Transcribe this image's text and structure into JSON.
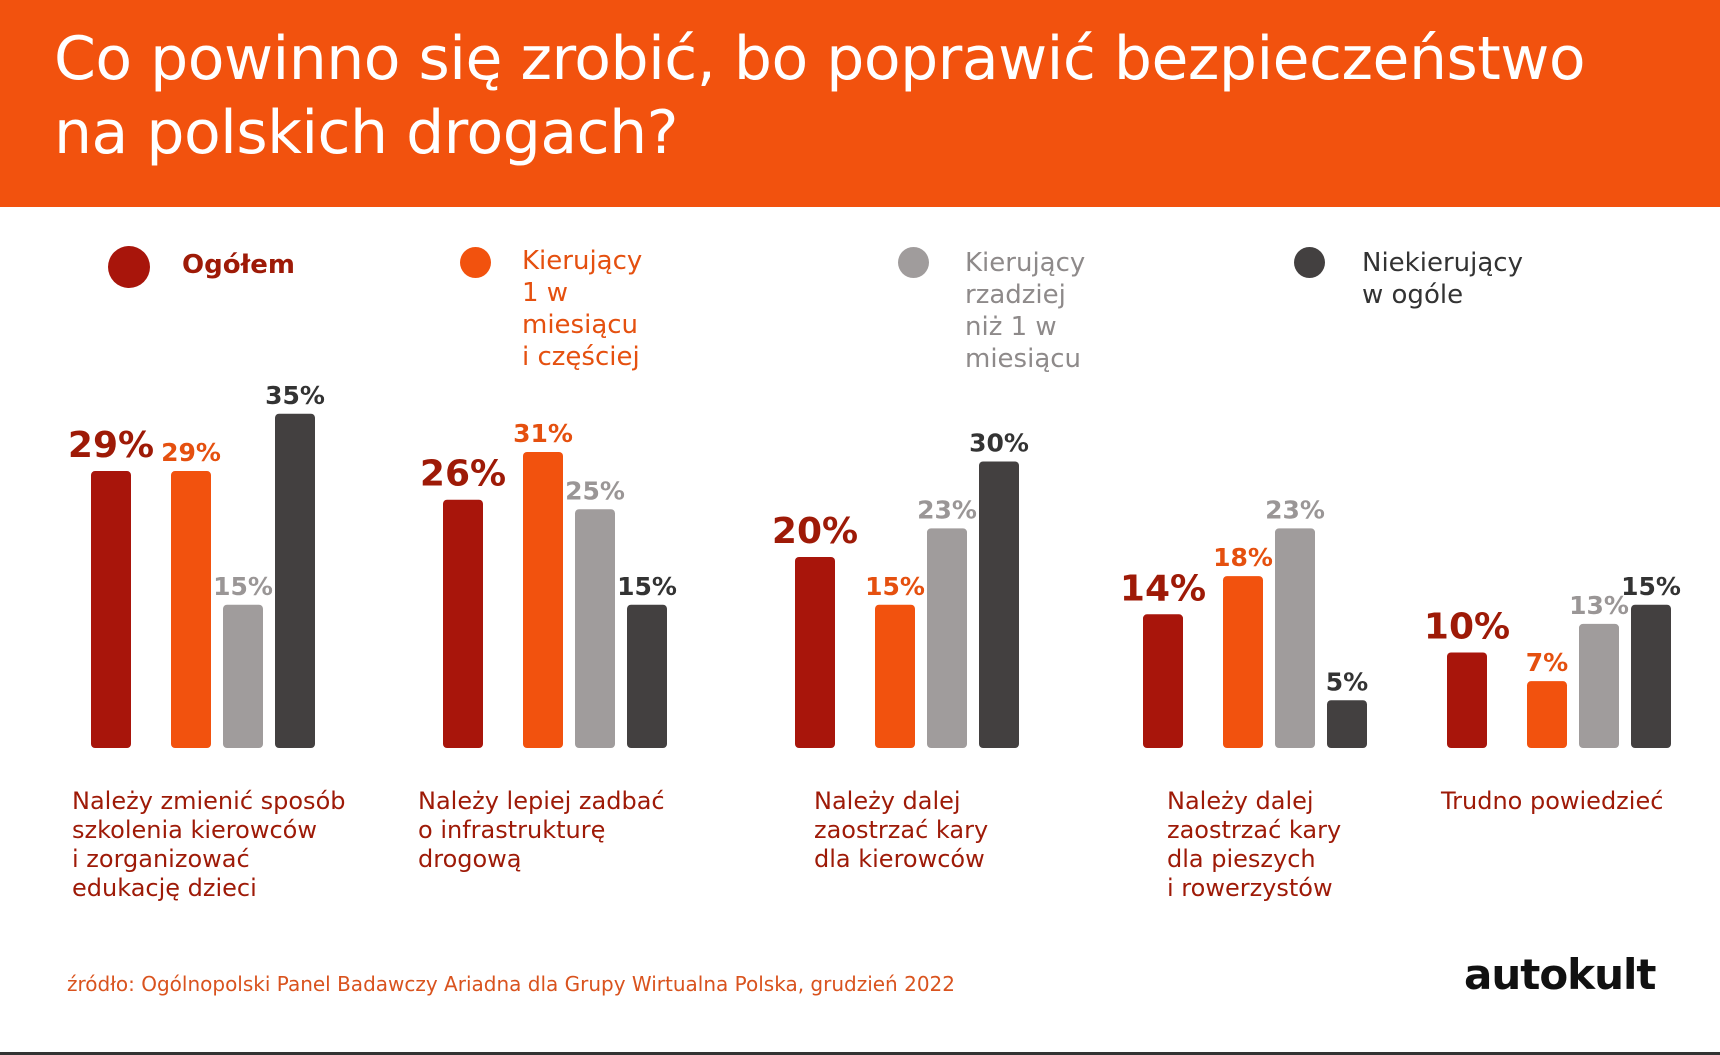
{
  "header": {
    "title": "Co powinno się zrobić, bo poprawić bezpieczeństwo na polskich drogach?"
  },
  "colors": {
    "header_bg": "#f2520e",
    "series": [
      "#a8150b",
      "#f2520e",
      "#a09c9c",
      "#434040"
    ],
    "category_text": "#9e1a07",
    "source_text": "#d9531e"
  },
  "legend": [
    {
      "label": "Ogółem",
      "color": "#a8150b",
      "text_color": "#9e1a07"
    },
    {
      "label": "Kierujący 1 w miesiącu\ni częściej",
      "color": "#f2520e",
      "text_color": "#e5500f"
    },
    {
      "label": "Kierujący rzadziej\nniż 1 w miesiącu",
      "color": "#a09c9c",
      "text_color": "#8e8a8a"
    },
    {
      "label": "Niekierujący\nw ogóle",
      "color": "#434040",
      "text_color": "#333333"
    }
  ],
  "chart_data": {
    "type": "bar",
    "title": "Co powinno się zrobić, bo poprawić bezpieczeństwo na polskich drogach?",
    "categories": [
      "Należy zmienić sposób\nszkolenia kierowców\ni zorganizować\nedukację dzieci",
      "Należy lepiej zadbać\no infrastrukturę\ndrogową",
      "Należy dalej\nzaostrzać kary\ndla kierowców",
      "Należy dalej\nzaostrzać kary\ndla pieszych\ni rowerzystów",
      "Trudno powiedzieć"
    ],
    "series": [
      {
        "name": "Ogółem",
        "values": [
          29,
          26,
          20,
          14,
          10
        ],
        "labels": [
          "29%",
          "26%",
          "20%",
          "14%",
          "10%"
        ]
      },
      {
        "name": "Kierujący 1 w miesiącu i częściej",
        "values": [
          29,
          31,
          15,
          18,
          7
        ],
        "labels": [
          "29%",
          "31%",
          "15%",
          "18%",
          "7%"
        ]
      },
      {
        "name": "Kierujący rzadziej niż 1 w miesiącu",
        "values": [
          15,
          25,
          23,
          23,
          13
        ],
        "labels": [
          "15%",
          "25%",
          "23%",
          "23%",
          "13%"
        ]
      },
      {
        "name": "Niekierujący w ogóle",
        "values": [
          35,
          15,
          30,
          5,
          15
        ],
        "labels": [
          "35%",
          "15%",
          "30%",
          "5%",
          "15%"
        ]
      }
    ],
    "ylim": [
      0,
      35
    ],
    "grid": false,
    "legend_position": "top"
  },
  "source": "źródło: Ogólnopolski Panel Badawczy Ariadna dla Grupy Wirtualna Polska, grudzień 2022",
  "brand": "autokult"
}
